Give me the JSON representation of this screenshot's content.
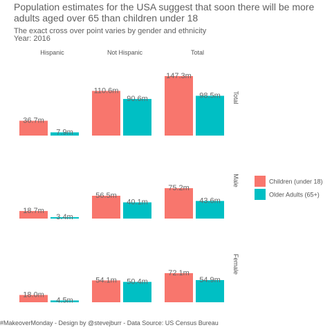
{
  "title": "Population estimates for the USA suggest that soon there will be more adults aged over 65 than children under 18",
  "subtitle": "The exact cross over point varies by gender and ethnicity",
  "year_text": "Year: 2016",
  "caption": "#MakeoverMonday - Design by @stevejburr - Data Source: US Census Bureau",
  "colors": {
    "children": "#F8766D",
    "older_adults": "#00BFC4",
    "label_text": "#666666",
    "strip_text": "#555555"
  },
  "chart_data": {
    "type": "bar",
    "facet_columns": [
      "Hispanic",
      "Not Hispanic",
      "Total"
    ],
    "facet_rows": [
      "Total",
      "Male",
      "Female"
    ],
    "series_names": [
      "Children (under 18)",
      "Older Adults (65+)"
    ],
    "value_unit": "m",
    "ylim": [
      0,
      150
    ],
    "legend_position": "right",
    "grid": false,
    "panels": [
      {
        "row": "Total",
        "column": "Hispanic",
        "values": [
          36.7,
          7.9
        ],
        "labels": [
          "36.7m",
          "7.9m"
        ]
      },
      {
        "row": "Total",
        "column": "Not Hispanic",
        "values": [
          110.6,
          90.6
        ],
        "labels": [
          "110.6m",
          "90.6m"
        ]
      },
      {
        "row": "Total",
        "column": "Total",
        "values": [
          147.3,
          98.5
        ],
        "labels": [
          "147.3m",
          "98.5m"
        ]
      },
      {
        "row": "Male",
        "column": "Hispanic",
        "values": [
          18.7,
          3.4
        ],
        "labels": [
          "18.7m",
          "3.4m"
        ]
      },
      {
        "row": "Male",
        "column": "Not Hispanic",
        "values": [
          56.5,
          40.1
        ],
        "labels": [
          "56.5m",
          "40.1m"
        ]
      },
      {
        "row": "Male",
        "column": "Total",
        "values": [
          75.2,
          43.6
        ],
        "labels": [
          "75.2m",
          "43.6m"
        ]
      },
      {
        "row": "Female",
        "column": "Hispanic",
        "values": [
          18.0,
          4.5
        ],
        "labels": [
          "18.0m",
          "4.5m"
        ]
      },
      {
        "row": "Female",
        "column": "Not Hispanic",
        "values": [
          54.1,
          50.4
        ],
        "labels": [
          "54.1m",
          "50.4m"
        ]
      },
      {
        "row": "Female",
        "column": "Total",
        "values": [
          72.1,
          54.9
        ],
        "labels": [
          "72.1m",
          "54.9m"
        ]
      }
    ]
  }
}
